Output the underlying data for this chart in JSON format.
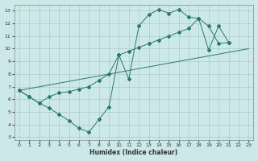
{
  "xlabel": "Humidex (Indice chaleur)",
  "background_color": "#cce8e8",
  "grid_color": "#aacccc",
  "line_color": "#2a7a6a",
  "xlim": [
    -0.5,
    23.5
  ],
  "ylim": [
    2.8,
    13.5
  ],
  "yticks": [
    3,
    4,
    5,
    6,
    7,
    8,
    9,
    10,
    11,
    12,
    13
  ],
  "xticks": [
    0,
    1,
    2,
    3,
    4,
    5,
    6,
    7,
    8,
    9,
    10,
    11,
    12,
    13,
    14,
    15,
    16,
    17,
    18,
    19,
    20,
    21,
    22,
    23
  ],
  "line1_x": [
    0,
    1,
    2,
    3,
    4,
    5,
    6,
    7,
    8,
    9,
    10,
    11,
    12,
    13,
    14,
    15,
    16,
    17,
    18,
    19,
    20,
    21
  ],
  "line1_y": [
    6.7,
    6.2,
    5.7,
    5.3,
    4.8,
    4.3,
    3.7,
    3.4,
    4.4,
    5.4,
    9.5,
    7.6,
    11.8,
    12.7,
    13.1,
    12.8,
    13.1,
    12.5,
    12.4,
    11.8,
    10.4,
    10.5
  ],
  "line2_x": [
    0,
    1,
    2,
    3,
    4,
    5,
    6,
    7,
    8,
    9,
    10,
    11,
    12,
    13,
    14,
    15,
    16,
    17,
    18,
    19,
    20,
    21
  ],
  "line2_y": [
    6.7,
    6.2,
    5.7,
    6.2,
    6.5,
    6.6,
    6.8,
    7.0,
    7.5,
    8.0,
    9.5,
    9.8,
    10.1,
    10.4,
    10.7,
    11.0,
    11.3,
    11.6,
    12.4,
    9.9,
    11.8,
    10.5
  ],
  "line3_x": [
    0,
    23
  ],
  "line3_y": [
    6.7,
    10.0
  ]
}
